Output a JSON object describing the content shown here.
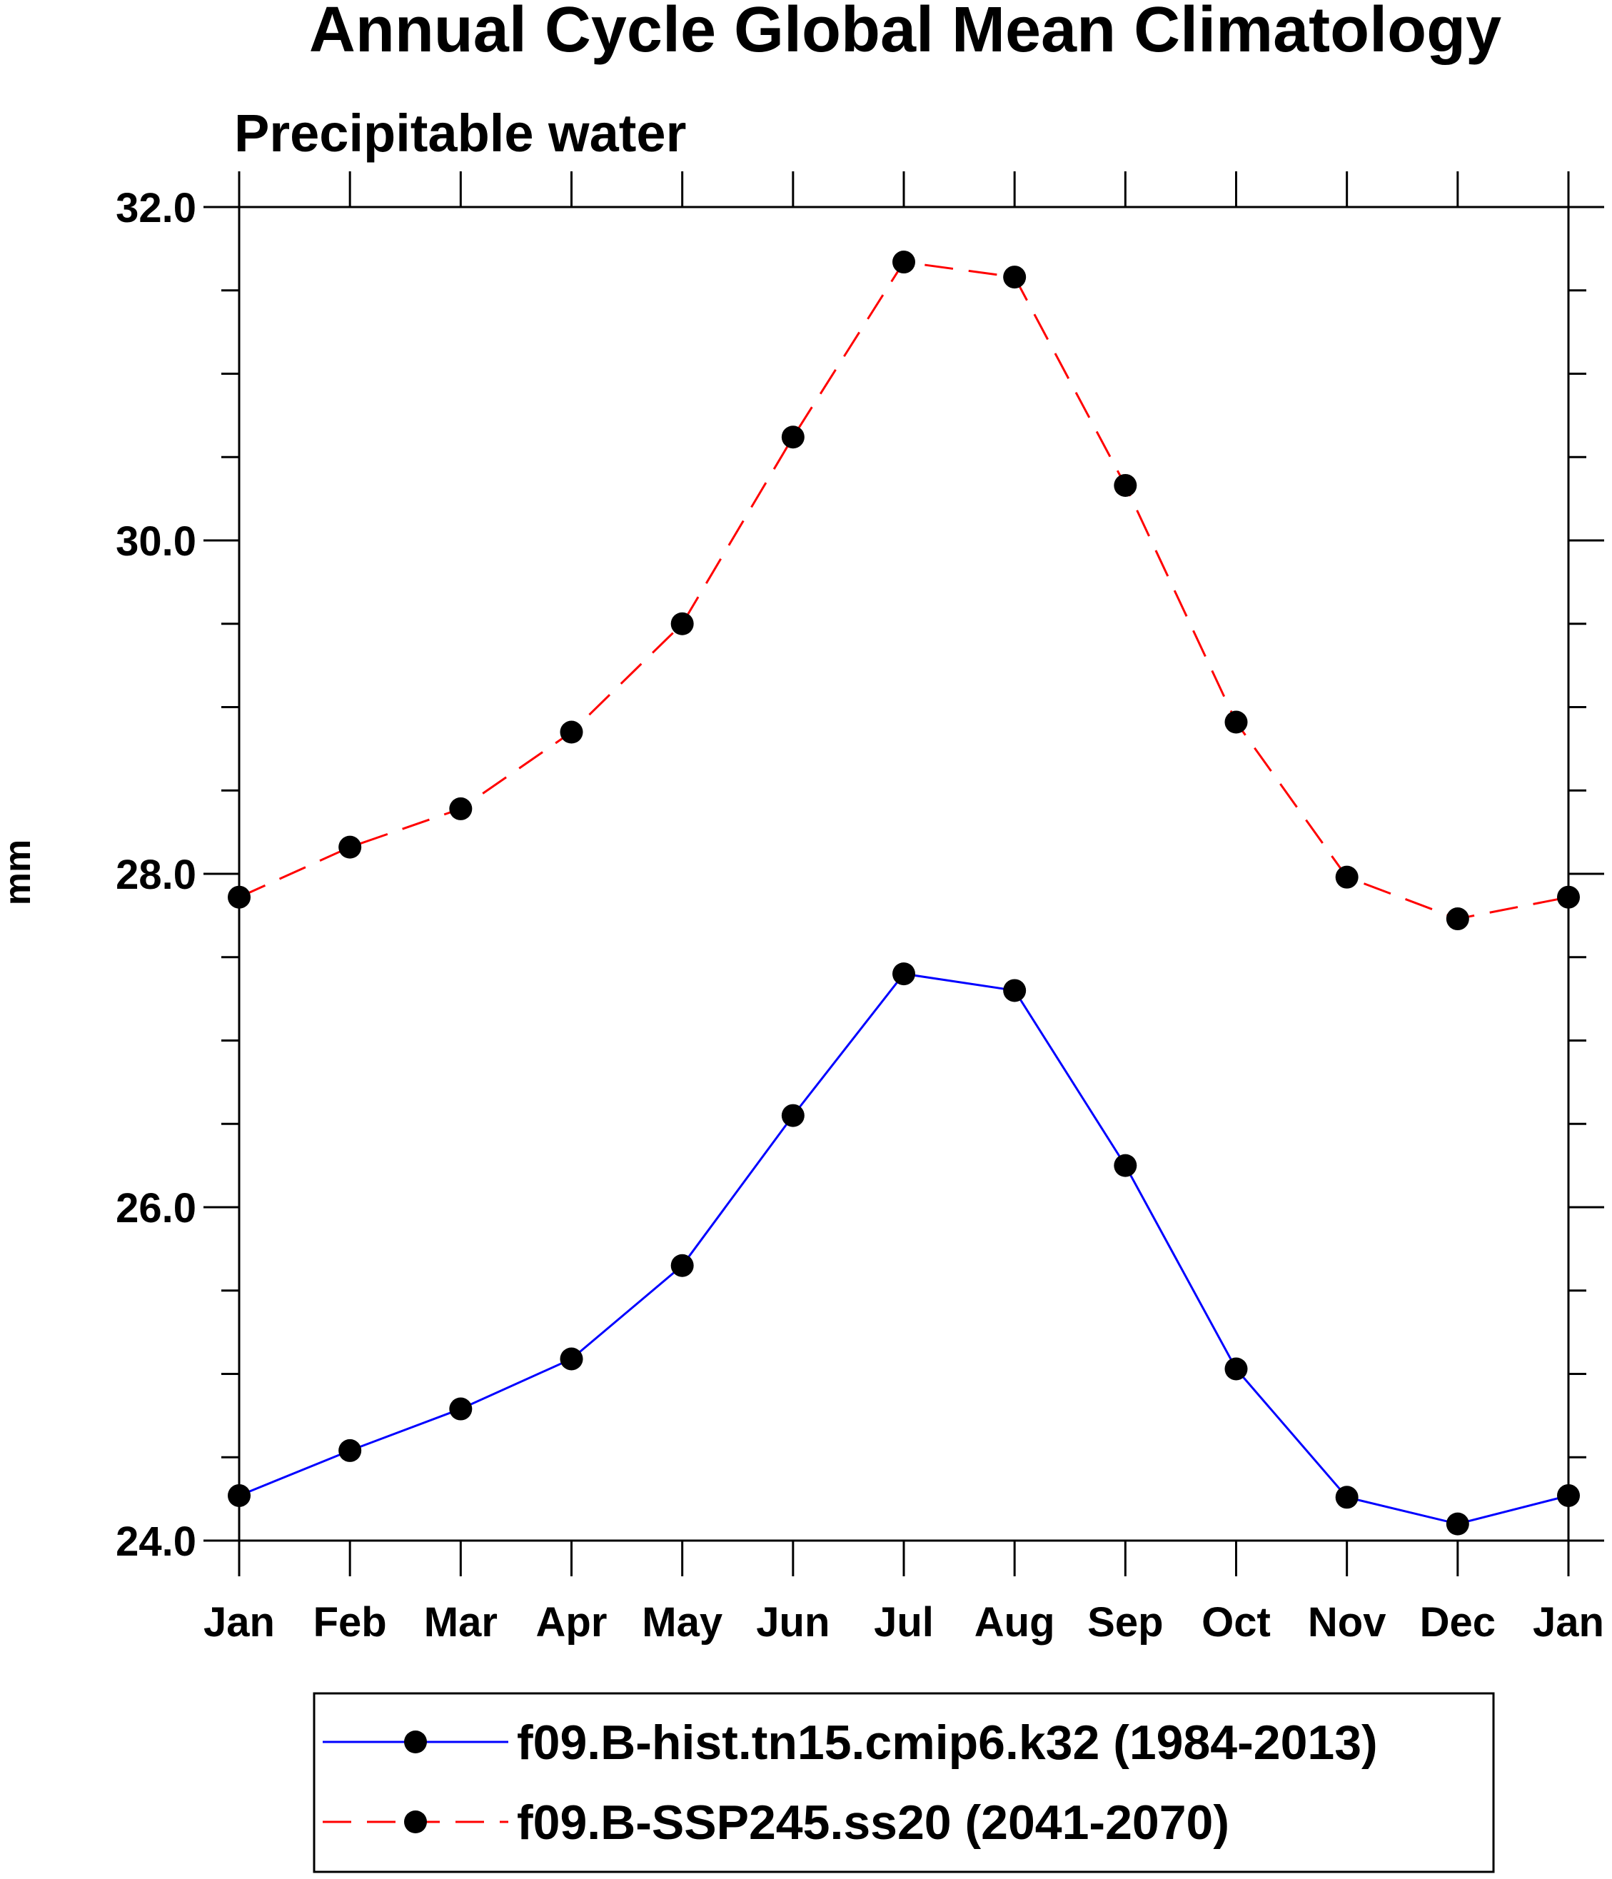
{
  "chart_data": {
    "type": "line",
    "title": "Annual Cycle Global Mean Climatology",
    "subtitle": "Precipitable water",
    "ylabel": "mm",
    "xlabel": "",
    "ylim": [
      24.0,
      32.0
    ],
    "yticks": [
      24.0,
      26.0,
      28.0,
      30.0,
      32.0
    ],
    "ytick_labels": [
      "24.0",
      "26.0",
      "28.0",
      "30.0",
      "32.0"
    ],
    "y_minor_step": 0.5,
    "categories": [
      "Jan",
      "Feb",
      "Mar",
      "Apr",
      "May",
      "Jun",
      "Jul",
      "Aug",
      "Sep",
      "Oct",
      "Nov",
      "Dec",
      "Jan"
    ],
    "series": [
      {
        "name": "f09.B-hist.tn15.cmip6.k32 (1984-2013)",
        "color": "#0000ff",
        "dash": "solid",
        "values": [
          24.27,
          24.54,
          24.79,
          25.09,
          25.65,
          26.55,
          27.4,
          27.3,
          26.25,
          25.03,
          24.26,
          24.1,
          24.27
        ]
      },
      {
        "name": "f09.B-SSP245.ss20 (2041-2070)",
        "color": "#ff0000",
        "dash": "dashed",
        "values": [
          27.86,
          28.16,
          28.39,
          28.85,
          29.5,
          30.62,
          31.67,
          31.58,
          30.33,
          28.91,
          27.98,
          27.73,
          27.86
        ]
      }
    ],
    "legend_position": "bottom"
  }
}
